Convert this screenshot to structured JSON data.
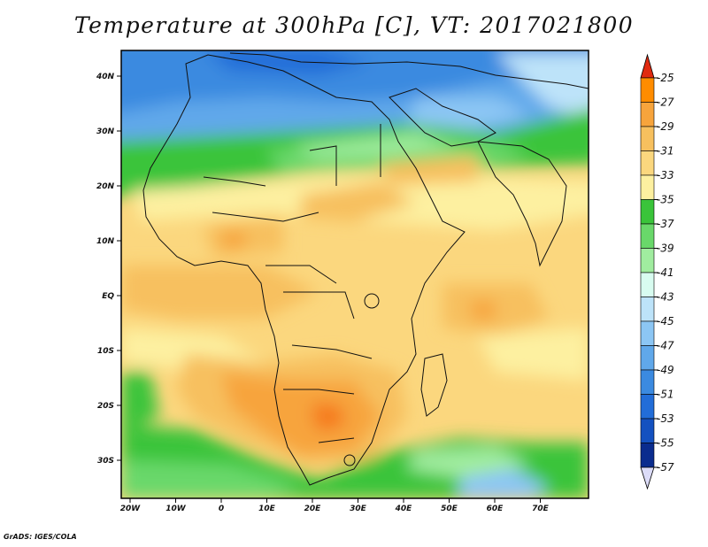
{
  "title": "Temperature at 300hPa [C], VT: 2017021800",
  "credit": "GrADS: IGES/COLA",
  "x_ticks": [
    "20W",
    "10W",
    "0",
    "10E",
    "20E",
    "30E",
    "40E",
    "50E",
    "60E",
    "70E"
  ],
  "y_ticks": [
    "40N",
    "30N",
    "20N",
    "10N",
    "EQ",
    "10S",
    "20S",
    "30S"
  ],
  "colorbar": {
    "labels": [
      "-25",
      "-27",
      "-29",
      "-31",
      "-33",
      "-35",
      "-37",
      "-39",
      "-41",
      "-43",
      "-45",
      "-47",
      "-49",
      "-51",
      "-53",
      "-55",
      "-57"
    ],
    "colors_top_to_bottom": [
      "#f0441e",
      "#ff8c00",
      "#f7a43c",
      "#f7c05e",
      "#fbd77e",
      "#fdf0a0",
      "#3ac43a",
      "#69d86a",
      "#a0ec9f",
      "#d8fcf0",
      "#bde3f9",
      "#8cc6f4",
      "#60a8ea",
      "#3b8ae0",
      "#226dd8",
      "#1451c0",
      "#0a2c8e",
      "#051a70"
    ],
    "top_arrow_color": "#e02a10",
    "bottom_arrow_color": "#dcdcf8"
  },
  "colors": {
    "map_border": "#000000",
    "land_outline": "#111111"
  }
}
